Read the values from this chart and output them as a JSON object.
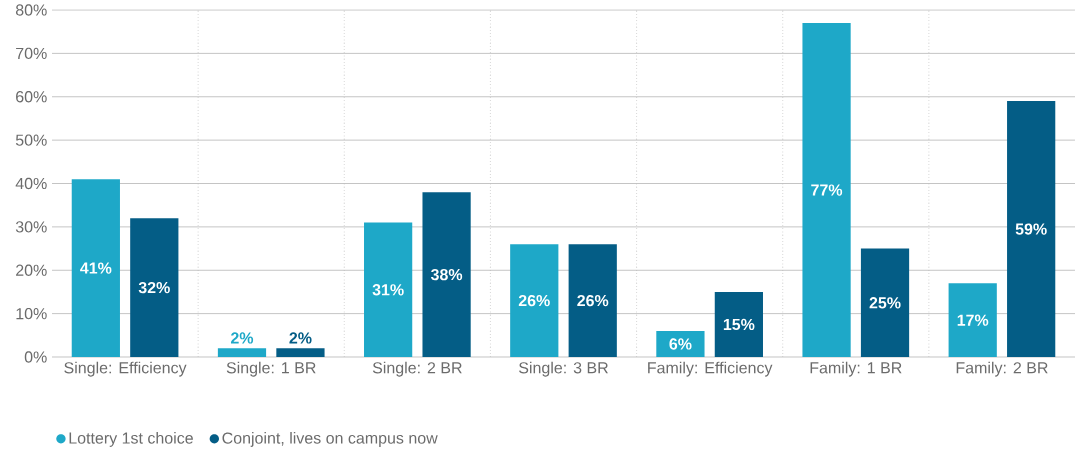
{
  "chart_data": {
    "type": "bar",
    "categories": [
      "Single: Efficiency",
      "Single: 1 BR",
      "Single: 2 BR",
      "Single: 3 BR",
      "Family: Efficiency",
      "Family: 1 BR",
      "Family: 2 BR"
    ],
    "series": [
      {
        "name": "Lottery 1st choice",
        "color": "#1ea8c8",
        "values": [
          41,
          2,
          31,
          26,
          6,
          77,
          17
        ],
        "value_labels": [
          "41%",
          "2%",
          "31%",
          "26%",
          "6%",
          "77%",
          "17%"
        ]
      },
      {
        "name": "Conjoint, lives on campus now",
        "color": "#045d86",
        "values": [
          32,
          2,
          38,
          26,
          15,
          25,
          59
        ],
        "value_labels": [
          "32%",
          "2%",
          "38%",
          "26%",
          "15%",
          "25%",
          "59%"
        ]
      }
    ],
    "ylim": [
      0,
      80
    ],
    "yticks": [
      {
        "value": 0,
        "label": "0%"
      },
      {
        "value": 10,
        "label": "10%"
      },
      {
        "value": 20,
        "label": "20%"
      },
      {
        "value": 30,
        "label": "30%"
      },
      {
        "value": 40,
        "label": "40%"
      },
      {
        "value": 50,
        "label": "50%"
      },
      {
        "value": 60,
        "label": "60%"
      },
      {
        "value": 70,
        "label": "70%"
      },
      {
        "value": 80,
        "label": "80%"
      }
    ],
    "grid": "y",
    "legend": "bottom left"
  }
}
